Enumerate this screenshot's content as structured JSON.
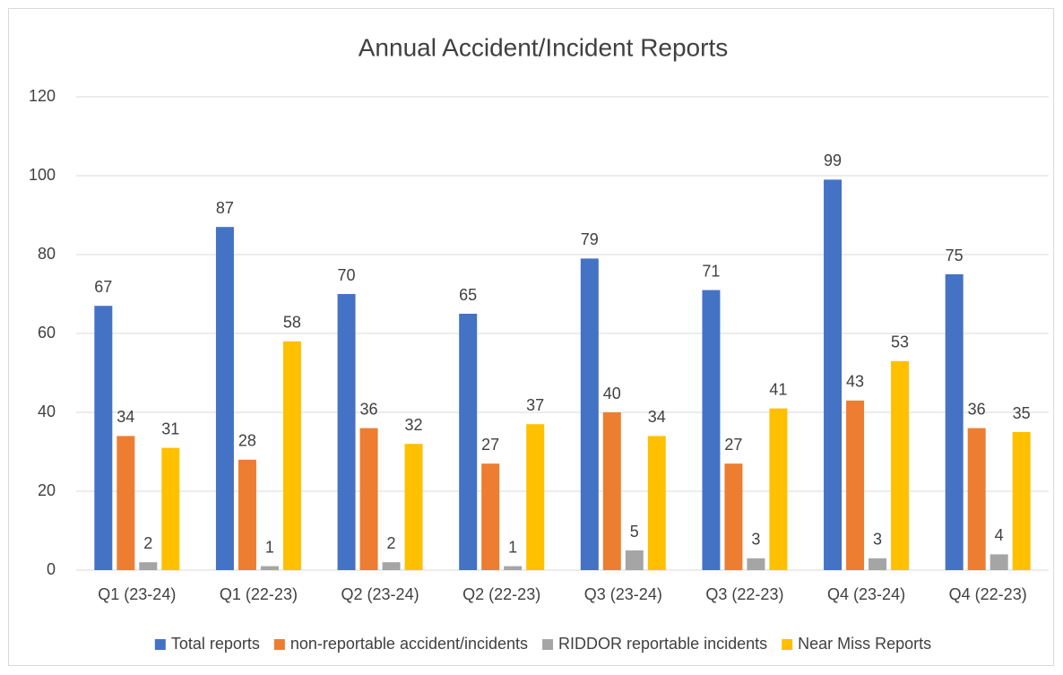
{
  "chart_data": {
    "type": "bar",
    "title": "Annual Accident/Incident Reports",
    "categories": [
      "Q1 (23-24)",
      "Q1 (22-23)",
      "Q2 (23-24)",
      "Q2 (22-23)",
      "Q3 (23-24)",
      "Q3 (22-23)",
      "Q4 (23-24)",
      "Q4 (22-23)"
    ],
    "series": [
      {
        "name": "Total reports",
        "color": "#4472c4",
        "values": [
          67,
          87,
          70,
          65,
          79,
          71,
          99,
          75
        ]
      },
      {
        "name": "non-reportable accident/incidents",
        "color": "#ed7d31",
        "values": [
          34,
          28,
          36,
          27,
          40,
          27,
          43,
          36
        ]
      },
      {
        "name": "RIDDOR reportable incidents",
        "color": "#a5a5a5",
        "values": [
          2,
          1,
          2,
          1,
          5,
          3,
          3,
          4
        ]
      },
      {
        "name": "Near Miss Reports",
        "color": "#ffc000",
        "values": [
          31,
          58,
          32,
          37,
          34,
          41,
          53,
          35
        ]
      }
    ],
    "ylim": [
      0,
      120
    ],
    "yticks": [
      0,
      20,
      40,
      60,
      80,
      100,
      120
    ],
    "grid": true,
    "legend": "bottom"
  }
}
